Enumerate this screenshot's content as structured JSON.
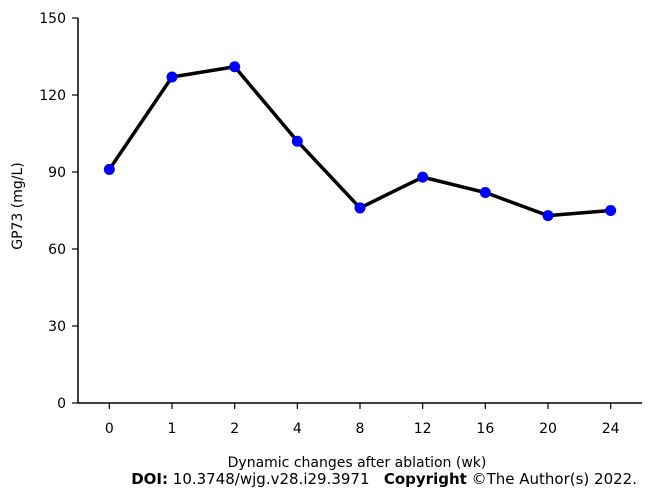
{
  "chart_data": {
    "type": "line",
    "categories": [
      "0",
      "1",
      "2",
      "4",
      "8",
      "12",
      "16",
      "20",
      "24"
    ],
    "series": [
      {
        "values": [
          91,
          127,
          131,
          102,
          76,
          88,
          82,
          73,
          75
        ]
      }
    ],
    "xlabel": "Dynamic changes after ablation (wk)",
    "ylabel": "GP73 (mg/L)",
    "ylim": [
      0,
      150
    ],
    "yticks": [
      0,
      30,
      60,
      90,
      120,
      150
    ],
    "grid": false,
    "line_color": "#000000",
    "marker_color": "#0000ff"
  },
  "footer": {
    "doi_label": "DOI:",
    "doi_value": "10.3748/wjg.v28.i29.3971",
    "copyright_label": "Copyright",
    "copyright_value": "©The Author(s) 2022."
  }
}
